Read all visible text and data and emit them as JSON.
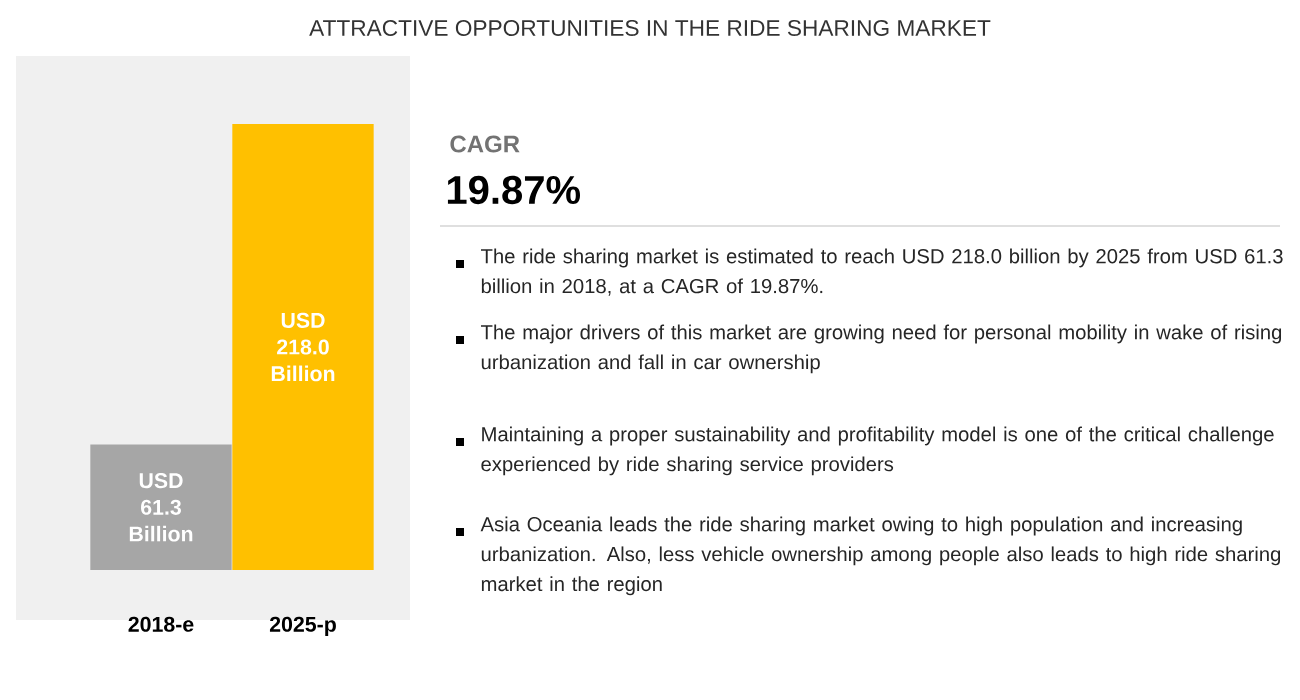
{
  "chart_data": {
    "type": "bar",
    "title": "ATTRACTIVE OPPORTUNITIES IN THE RIDE SHARING MARKET",
    "categories": [
      "2018-e",
      "2025-p"
    ],
    "values": [
      61.3,
      218.0
    ],
    "colors": [
      "#a6a6a6",
      "#ffc000"
    ],
    "value_labels": [
      "USD 61.3 Billion",
      "USD 218.0 Billion"
    ],
    "tick_labels": "x",
    "annotations": [
      "CAGR",
      "19.87%",
      "The ride sharing market is estimated to reach USD 218.0 billion by 2025 from USD 61.3 billion in 2018, at a CAGR of 19.87%.",
      "The major drivers of this market are growing need for personal mobility in wake of rising urbanization and fall in car ownership",
      "Maintaining a proper sustainability and profitability model is one of the critical challenge experienced by ride sharing service providers",
      "Asia Oceania leads the ride sharing market owing to high population and increasing urbanization. Also, less vehicle ownership among people also leads to high ride sharing market in the region"
    ]
  }
}
